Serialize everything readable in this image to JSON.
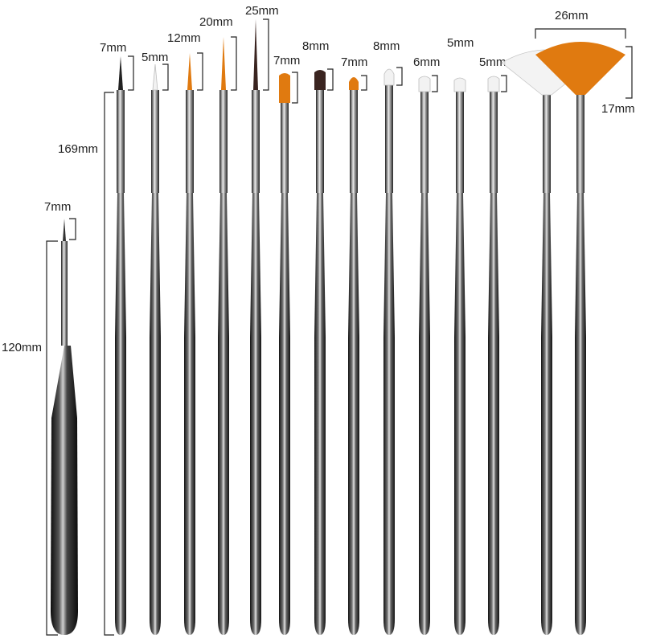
{
  "colors": {
    "handle_dark": "#1c1c1c",
    "handle_mid": "#5a5a5a",
    "handle_light": "#d8d8d8",
    "ferrule_dark": "#2a2a2a",
    "ferrule_light": "#e6e6e6",
    "bristle_orange": "#e07a10",
    "bristle_brown": "#3a2420",
    "bristle_white": "#f2f2f2",
    "bristle_dark_tip": "#222222"
  },
  "labels": {
    "dotting_tip": "7mm",
    "dotting_length": "120mm",
    "brush_length": "169mm",
    "fan_width": "26mm",
    "fan_height": "17mm",
    "group_right_5mm": "5mm"
  },
  "brushes": [
    {
      "tip": "7mm",
      "bristle": "bristle_dark_tip",
      "shape": "liner"
    },
    {
      "tip": "5mm",
      "bristle": "bristle_white",
      "shape": "liner"
    },
    {
      "tip": "12mm",
      "bristle": "bristle_orange",
      "shape": "liner"
    },
    {
      "tip": "20mm",
      "bristle": "bristle_orange",
      "shape": "liner"
    },
    {
      "tip": "25mm",
      "bristle": "bristle_brown",
      "shape": "liner"
    },
    {
      "tip": "7mm",
      "bristle": "bristle_orange",
      "shape": "flat"
    },
    {
      "tip": "8mm",
      "bristle": "bristle_brown",
      "shape": "flat"
    },
    {
      "tip": "7mm",
      "bristle": "bristle_orange",
      "shape": "round"
    },
    {
      "tip": "8mm",
      "bristle": "bristle_white",
      "shape": "round"
    },
    {
      "tip": "6mm",
      "bristle": "bristle_white",
      "shape": "flat"
    },
    {
      "tip": "",
      "bristle": "bristle_white",
      "shape": "flat"
    },
    {
      "tip": "5mm",
      "bristle": "bristle_white",
      "shape": "flat"
    },
    {
      "tip": "",
      "bristle": "bristle_white",
      "shape": "fan"
    },
    {
      "tip": "",
      "bristle": "bristle_orange",
      "shape": "fan"
    }
  ]
}
